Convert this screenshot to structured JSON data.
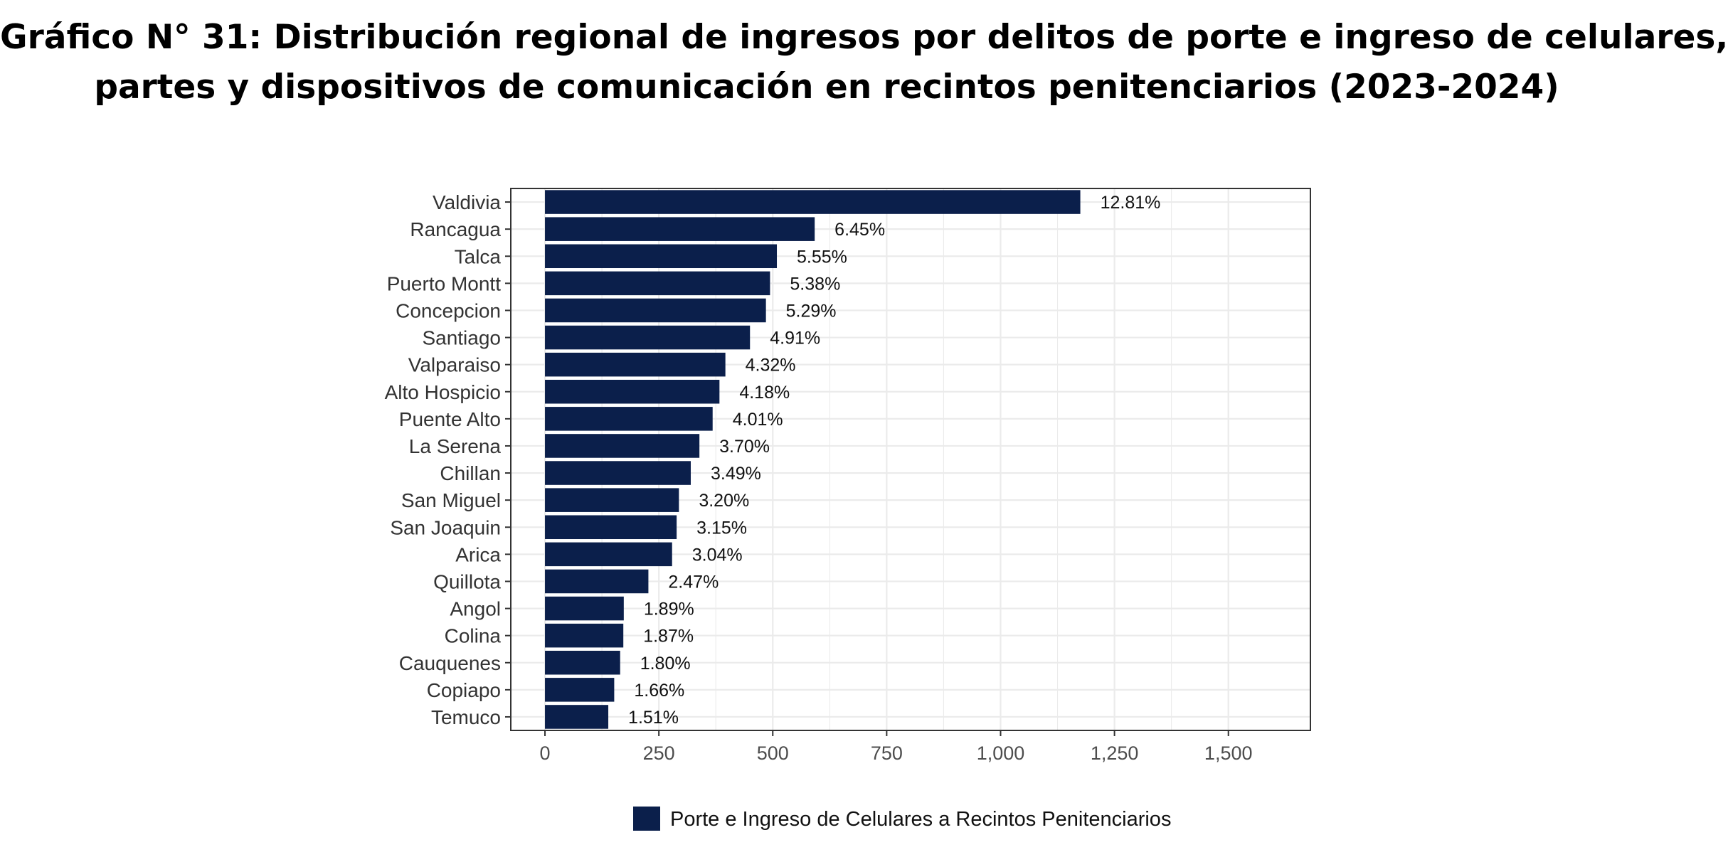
{
  "title_lines": [
    "Gráfico N° 31: Distribución regional de ingresos por delitos de porte e ingreso de celulares,",
    "partes y dispositivos de comunicación en recintos penitenciarios (2023-2024)"
  ],
  "colors": {
    "bar": "#0b1f4b",
    "grid": "#ebebeb",
    "panel_border": "#333333"
  },
  "chart_data": {
    "type": "bar",
    "orientation": "horizontal",
    "title": "Gráfico N° 31: Distribución regional de ingresos por delitos de porte e ingreso de celulares, partes y dispositivos de comunicación en recintos penitenciarios (2023-2024)",
    "xlabel": "",
    "ylabel": "",
    "xlim": [
      -75,
      1680
    ],
    "xticks": [
      0,
      250,
      500,
      750,
      1000,
      1250,
      1500
    ],
    "xtick_labels": [
      "0",
      "250",
      "500",
      "750",
      "1,000",
      "1,250",
      "1,500"
    ],
    "grid": true,
    "legend_position": "bottom",
    "categories": [
      "Valdivia",
      "Rancagua",
      "Talca",
      "Puerto Montt",
      "Concepcion",
      "Santiago",
      "Valparaiso",
      "Alto Hospicio",
      "Puente Alto",
      "La Serena",
      "Chillan",
      "San Miguel",
      "San Joaquin",
      "Arica",
      "Quillota",
      "Angol",
      "Colina",
      "Cauquenes",
      "Copiapo",
      "Temuco"
    ],
    "series": [
      {
        "name": "Porte e Ingreso de Celulares a Recintos Penitenciarios",
        "values": [
          1175,
          592,
          509,
          494,
          485,
          450,
          396,
          383,
          368,
          339,
          320,
          294,
          289,
          279,
          227,
          173,
          172,
          165,
          152,
          139
        ],
        "labels": [
          "12.81%",
          "6.45%",
          "5.55%",
          "5.38%",
          "5.29%",
          "4.91%",
          "4.32%",
          "4.18%",
          "4.01%",
          "3.70%",
          "3.49%",
          "3.20%",
          "3.15%",
          "3.04%",
          "2.47%",
          "1.89%",
          "1.87%",
          "1.80%",
          "1.66%",
          "1.51%"
        ]
      }
    ]
  }
}
